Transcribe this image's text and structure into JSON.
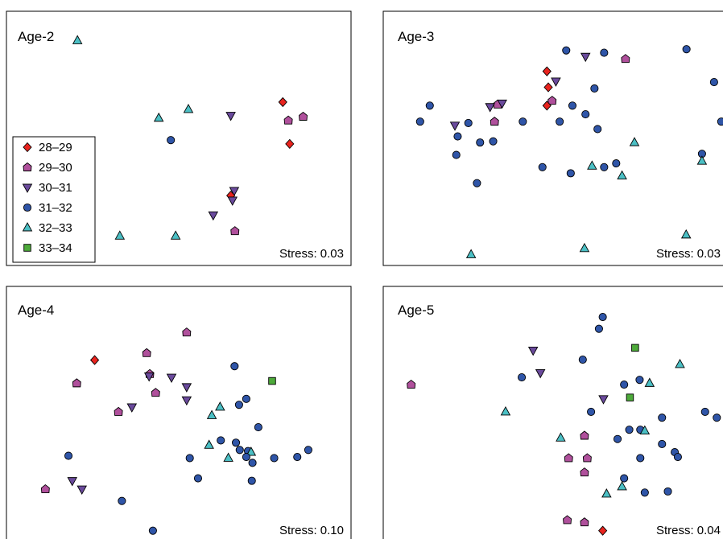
{
  "legend": [
    {
      "key": "d",
      "label": "28–29",
      "shape": "diamond",
      "color": "#e8231e"
    },
    {
      "key": "p",
      "label": "29–30",
      "shape": "pentagon",
      "color": "#b0509c"
    },
    {
      "key": "v",
      "label": "30–31",
      "shape": "triangle-down",
      "color": "#6a4a9c"
    },
    {
      "key": "c",
      "label": "31–32",
      "shape": "circle",
      "color": "#2f55a8"
    },
    {
      "key": "t",
      "label": "32–33",
      "shape": "triangle-up",
      "color": "#4bbfc4"
    },
    {
      "key": "s",
      "label": "33–34",
      "shape": "square",
      "color": "#4daa3a"
    }
  ],
  "chart_data": [
    {
      "type": "scatter",
      "title": "Age-2",
      "stress_label": "Stress: 0.03",
      "xlim": [
        0,
        100
      ],
      "ylim": [
        0,
        100
      ],
      "points": [
        {
          "g": "t",
          "x": 20.6,
          "y": 93.7
        },
        {
          "g": "d",
          "x": 80.2,
          "y": 67.5
        },
        {
          "g": "p",
          "x": 81.8,
          "y": 59.7
        },
        {
          "g": "p",
          "x": 86.1,
          "y": 61.3
        },
        {
          "g": "d",
          "x": 82.2,
          "y": 49.7
        },
        {
          "g": "t",
          "x": 44.2,
          "y": 60.7
        },
        {
          "g": "t",
          "x": 52.8,
          "y": 64.4
        },
        {
          "g": "v",
          "x": 65.1,
          "y": 61.8
        },
        {
          "g": "c",
          "x": 47.7,
          "y": 51.3
        },
        {
          "g": "v",
          "x": 66.1,
          "y": 29.8
        },
        {
          "g": "d",
          "x": 65.1,
          "y": 27.7
        },
        {
          "g": "v",
          "x": 65.6,
          "y": 25.7
        },
        {
          "g": "v",
          "x": 60.0,
          "y": 19.4
        },
        {
          "g": "t",
          "x": 32.9,
          "y": 10.5
        },
        {
          "g": "t",
          "x": 49.1,
          "y": 10.5
        },
        {
          "g": "p",
          "x": 66.3,
          "y": 12.6
        }
      ]
    },
    {
      "type": "scatter",
      "title": "Age-3",
      "stress_label": "Stress: 0.03",
      "xlim": [
        0,
        100
      ],
      "ylim": [
        0,
        100
      ],
      "points": [
        {
          "g": "c",
          "x": 53.1,
          "y": 89.5
        },
        {
          "g": "v",
          "x": 58.7,
          "y": 86.9
        },
        {
          "g": "c",
          "x": 64.1,
          "y": 88.5
        },
        {
          "g": "p",
          "x": 70.3,
          "y": 85.9
        },
        {
          "g": "c",
          "x": 88.0,
          "y": 90.0
        },
        {
          "g": "d",
          "x": 47.5,
          "y": 80.6
        },
        {
          "g": "v",
          "x": 50.1,
          "y": 76.4
        },
        {
          "g": "d",
          "x": 47.9,
          "y": 73.8
        },
        {
          "g": "p",
          "x": 49.0,
          "y": 68.1
        },
        {
          "g": "d",
          "x": 47.5,
          "y": 66.0
        },
        {
          "g": "c",
          "x": 54.9,
          "y": 66.0
        },
        {
          "g": "c",
          "x": 61.3,
          "y": 73.3
        },
        {
          "g": "c",
          "x": 58.7,
          "y": 62.3
        },
        {
          "g": "c",
          "x": 51.2,
          "y": 59.2
        },
        {
          "g": "c",
          "x": 62.2,
          "y": 56.0
        },
        {
          "g": "c",
          "x": 40.5,
          "y": 59.2
        },
        {
          "g": "p",
          "x": 33.2,
          "y": 66.5
        },
        {
          "g": "v",
          "x": 34.5,
          "y": 67.0
        },
        {
          "g": "v",
          "x": 31.0,
          "y": 65.5
        },
        {
          "g": "p",
          "x": 32.3,
          "y": 59.2
        },
        {
          "g": "v",
          "x": 20.8,
          "y": 57.6
        },
        {
          "g": "c",
          "x": 24.7,
          "y": 58.6
        },
        {
          "g": "c",
          "x": 13.5,
          "y": 66.0
        },
        {
          "g": "c",
          "x": 10.7,
          "y": 59.2
        },
        {
          "g": "c",
          "x": 21.6,
          "y": 52.9
        },
        {
          "g": "c",
          "x": 28.1,
          "y": 50.3
        },
        {
          "g": "c",
          "x": 31.9,
          "y": 50.8
        },
        {
          "g": "c",
          "x": 21.2,
          "y": 45.0
        },
        {
          "g": "c",
          "x": 27.2,
          "y": 33.0
        },
        {
          "g": "c",
          "x": 46.2,
          "y": 39.8
        },
        {
          "g": "c",
          "x": 54.4,
          "y": 37.2
        },
        {
          "g": "t",
          "x": 60.6,
          "y": 40.3
        },
        {
          "g": "c",
          "x": 64.1,
          "y": 39.8
        },
        {
          "g": "c",
          "x": 67.6,
          "y": 41.4
        },
        {
          "g": "t",
          "x": 69.3,
          "y": 36.1
        },
        {
          "g": "t",
          "x": 72.9,
          "y": 50.3
        },
        {
          "g": "c",
          "x": 98.1,
          "y": 59.2
        },
        {
          "g": "c",
          "x": 92.5,
          "y": 45.5
        },
        {
          "g": "t",
          "x": 92.5,
          "y": 42.4
        },
        {
          "g": "t",
          "x": 87.9,
          "y": 11.0
        },
        {
          "g": "t",
          "x": 58.4,
          "y": 5.2
        },
        {
          "g": "t",
          "x": 25.5,
          "y": 2.6
        },
        {
          "g": "c",
          "x": 96.0,
          "y": 76.0
        }
      ]
    },
    {
      "type": "scatter",
      "title": "Age-4",
      "stress_label": "Stress: 0.10",
      "xlim": [
        0,
        100
      ],
      "ylim": [
        0,
        100
      ],
      "points": [
        {
          "g": "p",
          "x": 52.3,
          "y": 90.0
        },
        {
          "g": "d",
          "x": 25.6,
          "y": 77.8
        },
        {
          "g": "p",
          "x": 40.7,
          "y": 80.9
        },
        {
          "g": "p",
          "x": 41.6,
          "y": 71.7
        },
        {
          "g": "v",
          "x": 41.4,
          "y": 70.7
        },
        {
          "g": "v",
          "x": 47.9,
          "y": 70.2
        },
        {
          "g": "v",
          "x": 52.3,
          "y": 66.0
        },
        {
          "g": "p",
          "x": 20.4,
          "y": 67.6
        },
        {
          "g": "p",
          "x": 43.3,
          "y": 63.4
        },
        {
          "g": "v",
          "x": 52.3,
          "y": 60.2
        },
        {
          "g": "p",
          "x": 32.5,
          "y": 55.0
        },
        {
          "g": "v",
          "x": 36.4,
          "y": 57.1
        },
        {
          "g": "c",
          "x": 66.2,
          "y": 75.1
        },
        {
          "g": "s",
          "x": 77.1,
          "y": 68.6
        },
        {
          "g": "c",
          "x": 67.5,
          "y": 58.1
        },
        {
          "g": "c",
          "x": 69.6,
          "y": 60.7
        },
        {
          "g": "t",
          "x": 62.0,
          "y": 57.1
        },
        {
          "g": "t",
          "x": 59.6,
          "y": 53.4
        },
        {
          "g": "c",
          "x": 73.1,
          "y": 48.2
        },
        {
          "g": "c",
          "x": 62.2,
          "y": 42.4
        },
        {
          "g": "c",
          "x": 66.6,
          "y": 41.4
        },
        {
          "g": "t",
          "x": 58.8,
          "y": 40.3
        },
        {
          "g": "c",
          "x": 67.7,
          "y": 38.2
        },
        {
          "g": "c",
          "x": 70.1,
          "y": 37.7
        },
        {
          "g": "t",
          "x": 71.0,
          "y": 37.2
        },
        {
          "g": "c",
          "x": 69.6,
          "y": 35.1
        },
        {
          "g": "t",
          "x": 64.4,
          "y": 34.6
        },
        {
          "g": "c",
          "x": 53.2,
          "y": 34.6
        },
        {
          "g": "c",
          "x": 71.4,
          "y": 32.5
        },
        {
          "g": "c",
          "x": 77.7,
          "y": 34.6
        },
        {
          "g": "c",
          "x": 84.4,
          "y": 35.1
        },
        {
          "g": "c",
          "x": 87.6,
          "y": 38.2
        },
        {
          "g": "c",
          "x": 55.6,
          "y": 25.7
        },
        {
          "g": "c",
          "x": 71.2,
          "y": 24.6
        },
        {
          "g": "c",
          "x": 18.0,
          "y": 35.6
        },
        {
          "g": "v",
          "x": 19.1,
          "y": 24.6
        },
        {
          "g": "v",
          "x": 21.9,
          "y": 20.9
        },
        {
          "g": "p",
          "x": 11.3,
          "y": 20.9
        },
        {
          "g": "c",
          "x": 33.5,
          "y": 15.7
        },
        {
          "g": "c",
          "x": 42.5,
          "y": 2.6
        }
      ]
    },
    {
      "type": "scatter",
      "title": "Age-5",
      "stress_label": "Stress: 0.04",
      "xlim": [
        0,
        100
      ],
      "ylim": [
        0,
        100
      ],
      "points": [
        {
          "g": "c",
          "x": 63.7,
          "y": 96.8
        },
        {
          "g": "c",
          "x": 62.6,
          "y": 91.6
        },
        {
          "g": "s",
          "x": 73.1,
          "y": 83.2
        },
        {
          "g": "t",
          "x": 86.1,
          "y": 75.9
        },
        {
          "g": "v",
          "x": 43.5,
          "y": 82.1
        },
        {
          "g": "c",
          "x": 57.9,
          "y": 78.0
        },
        {
          "g": "v",
          "x": 45.6,
          "y": 72.2
        },
        {
          "g": "c",
          "x": 40.2,
          "y": 70.2
        },
        {
          "g": "p",
          "x": 8.1,
          "y": 67.0
        },
        {
          "g": "c",
          "x": 69.9,
          "y": 67.0
        },
        {
          "g": "c",
          "x": 74.4,
          "y": 69.1
        },
        {
          "g": "t",
          "x": 77.3,
          "y": 67.6
        },
        {
          "g": "s",
          "x": 71.6,
          "y": 61.3
        },
        {
          "g": "v",
          "x": 63.9,
          "y": 60.7
        },
        {
          "g": "c",
          "x": 60.3,
          "y": 55.0
        },
        {
          "g": "t",
          "x": 35.5,
          "y": 55.0
        },
        {
          "g": "c",
          "x": 80.9,
          "y": 52.4
        },
        {
          "g": "c",
          "x": 93.4,
          "y": 55.0
        },
        {
          "g": "c",
          "x": 96.8,
          "y": 52.4
        },
        {
          "g": "c",
          "x": 71.4,
          "y": 47.1
        },
        {
          "g": "c",
          "x": 74.6,
          "y": 47.1
        },
        {
          "g": "t",
          "x": 75.9,
          "y": 46.6
        },
        {
          "g": "c",
          "x": 68.0,
          "y": 43.0
        },
        {
          "g": "t",
          "x": 51.5,
          "y": 43.5
        },
        {
          "g": "p",
          "x": 58.4,
          "y": 44.5
        },
        {
          "g": "c",
          "x": 80.9,
          "y": 40.8
        },
        {
          "g": "c",
          "x": 84.6,
          "y": 37.2
        },
        {
          "g": "c",
          "x": 85.5,
          "y": 35.1
        },
        {
          "g": "c",
          "x": 74.6,
          "y": 34.6
        },
        {
          "g": "p",
          "x": 53.8,
          "y": 34.6
        },
        {
          "g": "p",
          "x": 59.2,
          "y": 34.6
        },
        {
          "g": "p",
          "x": 58.4,
          "y": 28.3
        },
        {
          "g": "c",
          "x": 69.9,
          "y": 25.7
        },
        {
          "g": "t",
          "x": 69.3,
          "y": 22.0
        },
        {
          "g": "t",
          "x": 64.8,
          "y": 18.8
        },
        {
          "g": "c",
          "x": 75.9,
          "y": 19.4
        },
        {
          "g": "c",
          "x": 82.6,
          "y": 19.9
        },
        {
          "g": "p",
          "x": 53.4,
          "y": 7.3
        },
        {
          "g": "p",
          "x": 58.4,
          "y": 6.3
        },
        {
          "g": "d",
          "x": 63.7,
          "y": 2.6
        }
      ]
    }
  ]
}
